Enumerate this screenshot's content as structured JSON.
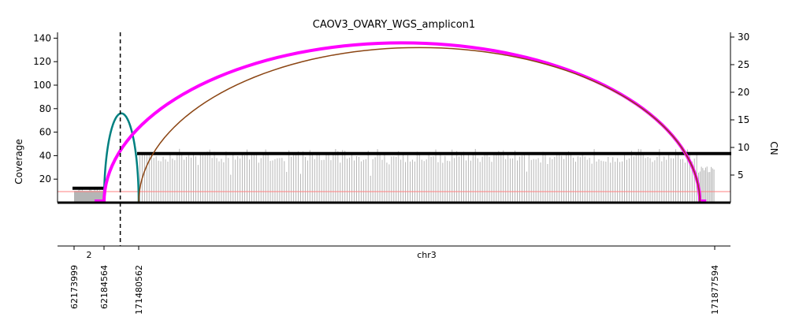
{
  "chart_data": {
    "type": "line",
    "title": "CAOV3_OVARY_WGS_amplicon1",
    "ylabel": "Coverage",
    "y2label": "CN",
    "ylim": [
      0,
      148
    ],
    "y2lim": [
      0,
      31
    ],
    "yticks": [
      20,
      40,
      60,
      80,
      100,
      120,
      140
    ],
    "y2ticks": [
      5,
      10,
      15,
      20,
      25,
      30
    ],
    "chromosome_labels": [
      {
        "text": "2",
        "segment": 0
      },
      {
        "text": "chr3",
        "segment": 1
      }
    ],
    "segments": [
      {
        "chrom": "chr2",
        "start": 62173999,
        "end": 62184564
      },
      {
        "chrom": "chr3",
        "start": 171480562,
        "end": 171877594
      }
    ],
    "position_labels": [
      "62173999",
      "62184564",
      "171480562",
      "171877594"
    ],
    "marker_line": {
      "segment": 0,
      "position": 62190300,
      "style": "dashed"
    },
    "cn_segments": [
      {
        "segment": 0,
        "start": 62173999,
        "end": 62184564,
        "cn": 2.6
      },
      {
        "segment": 1,
        "start": 171480562,
        "end": 171877594,
        "cn": 8.9
      }
    ],
    "cn_reference_line": 2.0,
    "coverage_profile": [
      {
        "segment": 0,
        "start": 62173999,
        "end": 62184564,
        "base": 10,
        "noise": 3,
        "bins": 24
      },
      {
        "segment": 1,
        "start": 171480562,
        "end": 171866000,
        "base": 40,
        "noise": 6,
        "bins": 240
      },
      {
        "segment": 1,
        "start": 171866000,
        "end": 171877594,
        "base": 28,
        "noise": 3,
        "bins": 12
      }
    ],
    "breakpoints": [
      {
        "from": {
          "segment": 0,
          "pos": 62184564
        },
        "to": {
          "segment": 1,
          "pos": 171480562
        },
        "height": 76,
        "color": "#008080",
        "width": 2.5
      },
      {
        "from": {
          "segment": 0,
          "pos": 62184564
        },
        "to": {
          "segment": 1,
          "pos": 171867400
        },
        "height": 136,
        "color": "#ff00ff",
        "width": 4
      },
      {
        "from": {
          "segment": 1,
          "pos": 171480562
        },
        "to": {
          "segment": 1,
          "pos": 171867400
        },
        "height": 132,
        "color": "#8b4513",
        "width": 1.5
      }
    ],
    "colors": {
      "coverage": "#b5b5b5",
      "cn": "#000000",
      "reference": "#ff8080"
    },
    "grid": false,
    "legend": "none"
  }
}
